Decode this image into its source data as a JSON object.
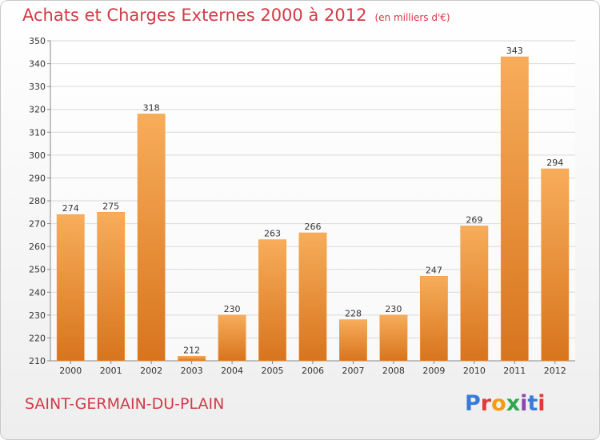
{
  "header": {
    "title": "Achats et Charges Externes 2000 à 2012",
    "unit": "(en milliers d'€)"
  },
  "place": "SAINT-GERMAIN-DU-PLAIN",
  "logo": {
    "text": "Proxiti",
    "letter_colors": [
      "#3a7bd5",
      "#e03a3a",
      "#f39c12",
      "#2ea84f",
      "#8e44ad",
      "#3a7bd5",
      "#e03a3a"
    ]
  },
  "colors": {
    "bar": "#f19a3e",
    "bar_light": "#f7ad5a",
    "bar_dark": "#d8741e",
    "title": "#d23a46",
    "grid": "#d9d9d9"
  },
  "chart_data": {
    "type": "bar",
    "title": "Achats et Charges Externes 2000 à 2012",
    "subtitle": "(en milliers d'€)",
    "categories": [
      "2000",
      "2001",
      "2002",
      "2003",
      "2004",
      "2005",
      "2006",
      "2007",
      "2008",
      "2009",
      "2010",
      "2011",
      "2012"
    ],
    "values": [
      274,
      275,
      318,
      212,
      230,
      263,
      266,
      228,
      230,
      247,
      269,
      343,
      294
    ],
    "ylim": [
      210,
      350
    ],
    "yticks": [
      210,
      220,
      230,
      240,
      250,
      260,
      270,
      280,
      290,
      300,
      310,
      320,
      330,
      340,
      350
    ],
    "grid": true,
    "data_labels": true,
    "xlabel": "",
    "ylabel": ""
  }
}
